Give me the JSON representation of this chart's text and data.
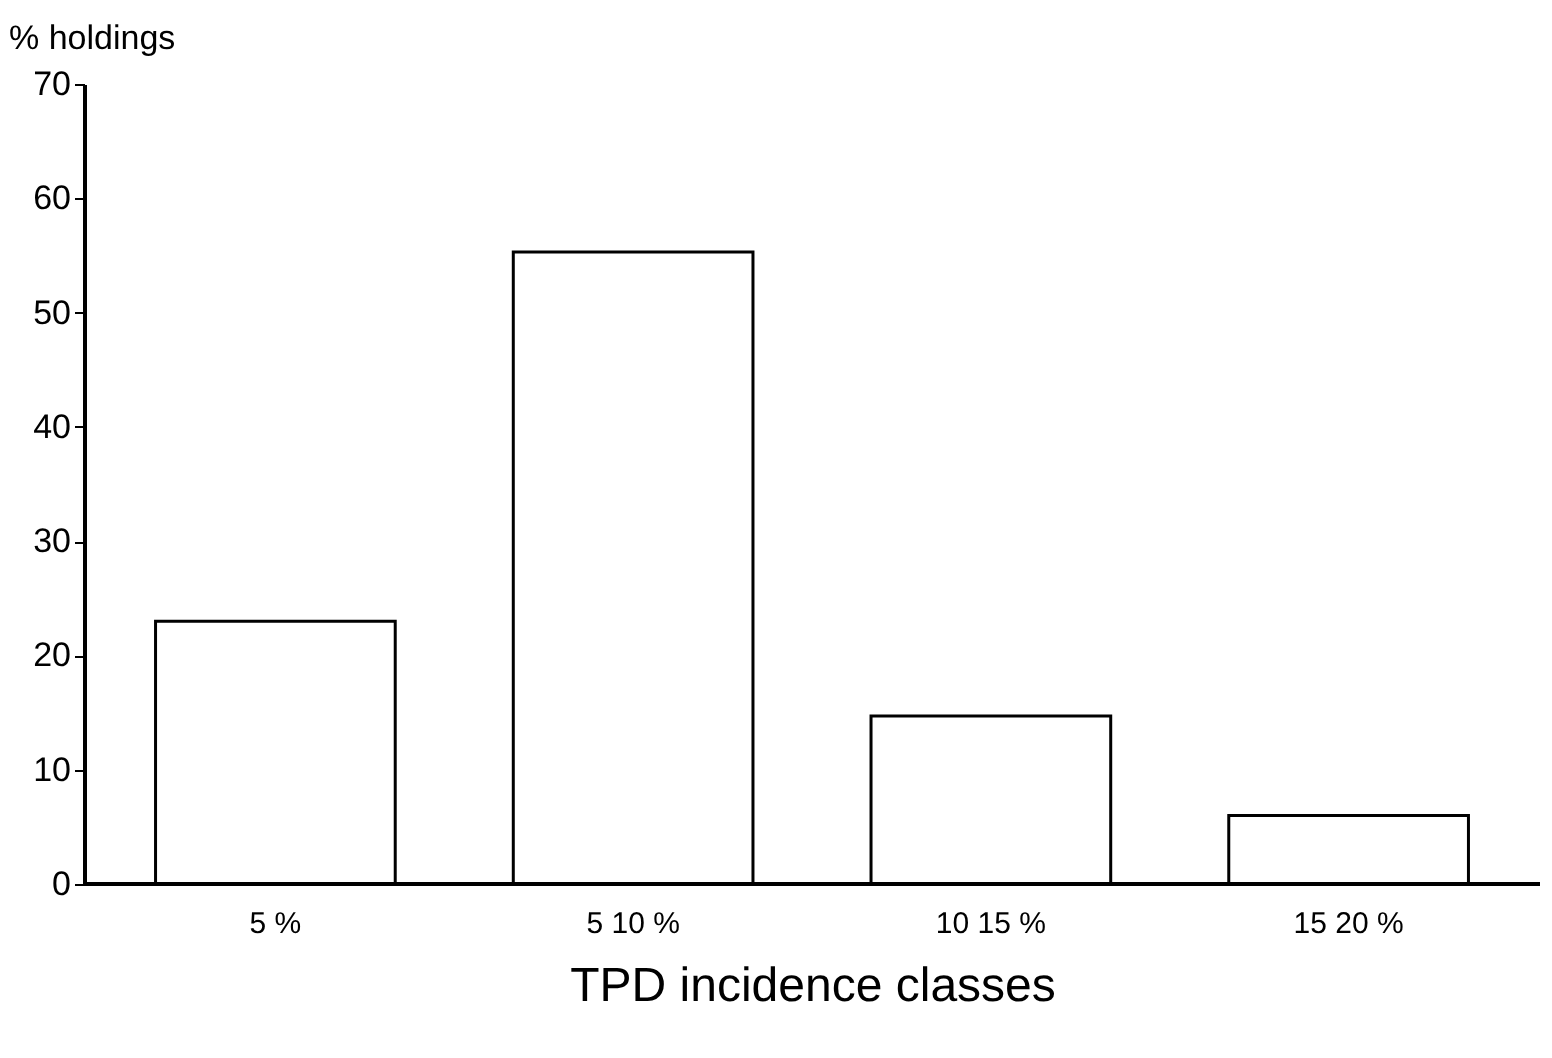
{
  "chart_data": {
    "type": "bar",
    "xlabel": "TPD incidence classes",
    "ylabel": "% holdings",
    "categories": [
      "5 %",
      "5 10 %",
      "10 15 %",
      "15 20 %"
    ],
    "values": [
      23,
      55.3,
      14.7,
      6
    ],
    "color": "#ffffff",
    "ylim": [
      0,
      70
    ],
    "yticks": [
      0,
      10,
      20,
      30,
      40,
      50,
      60,
      70
    ]
  }
}
